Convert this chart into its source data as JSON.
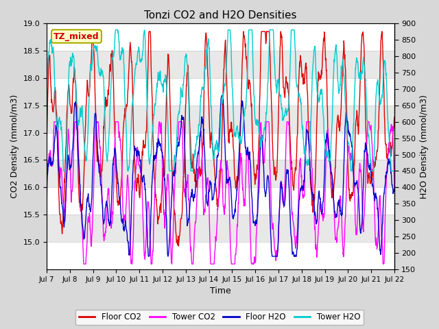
{
  "title": "Tonzi CO2 and H2O Densities",
  "xlabel": "Time",
  "ylabel_left": "CO2 Density (mmol/m3)",
  "ylabel_right": "H2O Density (mmol/m3)",
  "annotation": "TZ_mixed",
  "xlim_days": [
    7,
    22
  ],
  "ylim_left": [
    14.5,
    19.0
  ],
  "ylim_right": [
    150,
    900
  ],
  "xtick_labels": [
    "Jul 7",
    "Jul 8",
    "Jul 9",
    "Jul 10",
    "Jul 11",
    "Jul 12",
    "Jul 13",
    "Jul 14",
    "Jul 15",
    "Jul 16",
    "Jul 17",
    "Jul 18",
    "Jul 19",
    "Jul 20",
    "Jul 21",
    "Jul 22"
  ],
  "yticks_left": [
    15.0,
    15.5,
    16.0,
    16.5,
    17.0,
    17.5,
    18.0,
    18.5,
    19.0
  ],
  "yticks_right": [
    150,
    200,
    250,
    300,
    350,
    400,
    450,
    500,
    550,
    600,
    650,
    700,
    750,
    800,
    850,
    900
  ],
  "colors": {
    "floor_co2": "#dd0000",
    "tower_co2": "#ff00ff",
    "floor_h2o": "#0000cc",
    "tower_h2o": "#00cccc"
  },
  "legend_labels": [
    "Floor CO2",
    "Tower CO2",
    "Floor H2O",
    "Tower H2O"
  ],
  "fig_bg_color": "#d8d8d8",
  "plot_bg": "#ffffff",
  "linewidth": 1.0,
  "seed": 42
}
